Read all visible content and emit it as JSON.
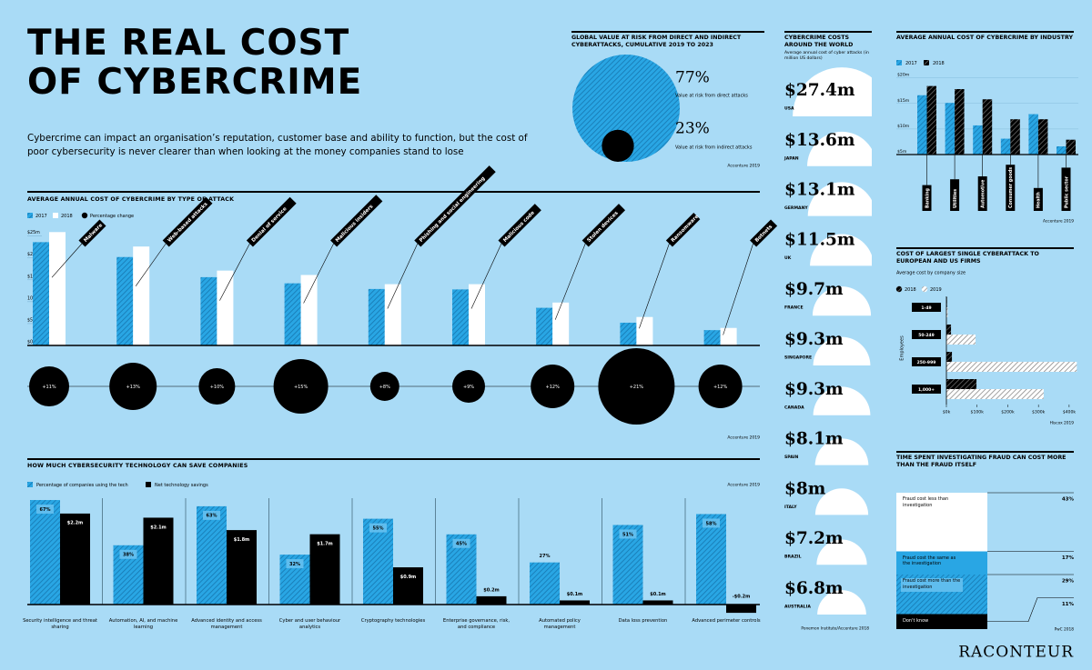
{
  "header": {
    "title_lines": [
      "THE REAL COST",
      "OF CYBERCRIME"
    ],
    "intro": "Cybercrime can impact an organisation’s reputation, customer base and ability to function, but the cost of poor cybersecurity is never clearer than when looking at the money companies stand to lose"
  },
  "footer": {
    "brand": "RACONTEUR"
  },
  "chart_data": [
    {
      "type": "circles",
      "title": "GLOBAL VALUE AT RISK FROM DIRECT AND INDIRECT CYBERATTACKS, CUMULATIVE 2019 TO 2023",
      "categories": [
        "Value at risk from direct attacks",
        "Value at risk from indirect attacks"
      ],
      "values": [
        77,
        23
      ],
      "value_labels": [
        "77%",
        "23%"
      ],
      "colors": [
        "#29a6e4",
        "#000000"
      ],
      "hatched": [
        true,
        false
      ],
      "source": "Accenture 2019"
    },
    {
      "type": "attack-bars",
      "title": "AVERAGE ANNUAL COST OF CYBERCRIME BY TYPE OF ATTACK",
      "categories": [
        "Malware",
        "Web-based attacks",
        "Denial of service",
        "Malicious insiders",
        "Phishing and social engineering",
        "Malicious code",
        "Stolen devices",
        "Ransomware",
        "Botnets"
      ],
      "series": [
        {
          "name": "2017",
          "color": "#29a6e4",
          "hatched": true,
          "values": [
            23.6,
            20.2,
            15.6,
            14.2,
            12.9,
            12.8,
            8.6,
            5.2,
            3.5
          ]
        },
        {
          "name": "2018",
          "color": "#ffffff",
          "hatched": false,
          "values": [
            25.9,
            22.6,
            17.1,
            16.1,
            14.0,
            14.0,
            9.8,
            6.5,
            4.0
          ]
        }
      ],
      "change": {
        "name": "Percentage change",
        "color": "#000000",
        "values": [
          11,
          13,
          10,
          15,
          8,
          9,
          12,
          21,
          12
        ],
        "value_labels": [
          "+11%",
          "+13%",
          "+10%",
          "+15%",
          "+8%",
          "+9%",
          "+12%",
          "+21%",
          "+12%"
        ]
      },
      "ylim": [
        0,
        27
      ],
      "yticks": [
        {
          "value": 0,
          "label": "$0m"
        },
        {
          "value": 5,
          "label": "$5m"
        },
        {
          "value": 10,
          "label": "10m"
        },
        {
          "value": 15,
          "label": "$15m"
        },
        {
          "value": 20,
          "label": "$20m"
        },
        {
          "value": 25,
          "label": "$25m"
        }
      ],
      "source": "Accenture 2019"
    },
    {
      "type": "tech-bars",
      "title": "HOW MUCH CYBERSECURITY TECHNOLOGY CAN SAVE COMPANIES",
      "categories": [
        "Security intelligence and threat sharing",
        "Automation, AI, and machine learning",
        "Advanced identity and access management",
        "Cyber and user behaviour analytics",
        "Cryptography technologies",
        "Enterprise governance, risk, and compliance",
        "Automated policy management",
        "Data loss prevention",
        "Advanced perimeter controls"
      ],
      "series": [
        {
          "name": "Percentage of companies using the tech",
          "color": "#29a6e4",
          "hatched": true,
          "values": [
            67,
            38,
            63,
            32,
            55,
            45,
            27,
            51,
            58
          ],
          "value_labels": [
            "67%",
            "38%",
            "63%",
            "32%",
            "55%",
            "45%",
            "27%",
            "51%",
            "58%"
          ]
        },
        {
          "name": "Net technology savings",
          "color": "#000000",
          "hatched": false,
          "values": [
            2.2,
            2.1,
            1.8,
            1.7,
            0.9,
            0.2,
            0.1,
            0.1,
            -0.2
          ],
          "value_labels": [
            "$2.2m",
            "$2.1m",
            "$1.8m",
            "$1.7m",
            "$0.9m",
            "$0.2m",
            "$0.1m",
            "$0.1m",
            "-$0.2m"
          ]
        }
      ],
      "source": "Accenture 2019"
    },
    {
      "type": "semicircles",
      "title": "CYBERCRIME COSTS AROUND THE WORLD",
      "subtitle": "Average annual cost of cyber attacks (in million US dollars)",
      "categories": [
        "USA",
        "JAPAN",
        "GERMANY",
        "UK",
        "FRANCE",
        "SINGAPORE",
        "CANADA",
        "SPAIN",
        "ITALY",
        "BRAZIL",
        "AUSTRALIA"
      ],
      "values": [
        27.4,
        13.6,
        13.1,
        11.5,
        9.7,
        9.3,
        9.3,
        8.1,
        8,
        7.2,
        6.8
      ],
      "value_labels": [
        "$27.4m",
        "$13.6m",
        "$13.1m",
        "$11.5m",
        "$9.7m",
        "$9.3m",
        "$9.3m",
        "$8.1m",
        "$8m",
        "$7.2m",
        "$6.8m"
      ],
      "color": "#ffffff",
      "source": "Ponemon Institute/Accenture 2018"
    },
    {
      "type": "industry-bars",
      "title": "AVERAGE ANNUAL COST OF CYBERCRIME BY INDUSTRY",
      "categories": [
        "Banking",
        "Utilities",
        "Automotive",
        "Consumer goods",
        "Health",
        "Public sector"
      ],
      "series": [
        {
          "name": "2017",
          "color": "#29a6e4",
          "hatched": true,
          "values": [
            16.6,
            15.1,
            10.7,
            8.1,
            12.9,
            6.6
          ]
        },
        {
          "name": "2018",
          "color": "#000000",
          "hatched": true,
          "values": [
            18.4,
            17.8,
            15.8,
            11.9,
            11.9,
            7.9
          ]
        }
      ],
      "ylim": [
        5,
        21
      ],
      "yticks": [
        {
          "value": 5,
          "label": "$5m"
        },
        {
          "value": 10,
          "label": "$10m"
        },
        {
          "value": 15,
          "label": "$15m"
        },
        {
          "value": 20,
          "label": "$20m"
        }
      ],
      "grid": true,
      "source": "Accenture 2019"
    },
    {
      "type": "hbar",
      "title": "COST OF LARGEST SINGLE CYBERATTACK TO EUROPEAN AND US FIRMS",
      "subtitle": "Average cost by company size",
      "y_label": "Employees",
      "categories": [
        "1-49",
        "50-249",
        "250-999",
        "1,000+"
      ],
      "series": [
        {
          "name": "2018",
          "color": "#000000",
          "hatched": true,
          "values": [
            2,
            15,
            18,
            98
          ]
        },
        {
          "name": "2019",
          "color": "#ffffff",
          "hatched": true,
          "values": [
            4,
            95,
            425,
            317
          ]
        }
      ],
      "xlim": [
        0,
        430
      ],
      "xticks": [
        {
          "value": 0,
          "label": "$0k"
        },
        {
          "value": 100,
          "label": "$100k"
        },
        {
          "value": 200,
          "label": "$200k"
        },
        {
          "value": 300,
          "label": "$300k"
        },
        {
          "value": 400,
          "label": "$400k"
        }
      ],
      "source": "Hiscox 2019"
    },
    {
      "type": "stacked-bar",
      "title": "TIME SPENT INVESTIGATING FRAUD CAN COST MORE THAN THE FRAUD ITSELF",
      "categories": [
        "Fraud cost less than investigation",
        "Fraud cost the same as the investigation",
        "Fraud cost more than the investigation",
        "Don't know"
      ],
      "values": [
        43,
        17,
        29,
        11
      ],
      "value_labels": [
        "43%",
        "17%",
        "29%",
        "11%"
      ],
      "colors": [
        "#ffffff",
        "#29a6e4",
        "#29a6e4",
        "#000000"
      ],
      "hatched": [
        false,
        false,
        true,
        false
      ],
      "source": "PwC 2018"
    }
  ]
}
